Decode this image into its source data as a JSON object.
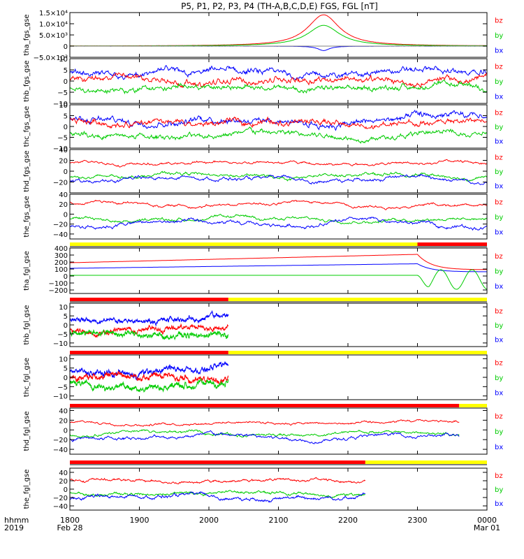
{
  "title": "P5, P1, P2, P3, P4 (TH-A,B,C,D,E) FGS, FGL [nT]",
  "footer": {
    "left_top": "hhmm",
    "left_bottom": "2019"
  },
  "colors": {
    "bz": "#ff0000",
    "by": "#00cc00",
    "bx": "#0000ff",
    "flag_yellow": "#ffff00",
    "flag_red": "#ff0000",
    "frame": "#000000"
  },
  "x_axis": {
    "ticks": [
      {
        "t": 0,
        "label": "1800",
        "sub": "Feb 28"
      },
      {
        "t": 1,
        "label": "1900",
        "sub": ""
      },
      {
        "t": 2,
        "label": "2000",
        "sub": ""
      },
      {
        "t": 3,
        "label": "2100",
        "sub": ""
      },
      {
        "t": 4,
        "label": "2200",
        "sub": ""
      },
      {
        "t": 5,
        "label": "2300",
        "sub": ""
      },
      {
        "t": 6,
        "label": "0000",
        "sub": "Mar 01"
      }
    ]
  },
  "chart_data": [
    {
      "type": "line",
      "ylabel": "tha_fgs_gse",
      "ylim": [
        -5000,
        15000
      ],
      "yticks": [
        {
          "v": 15000,
          "label": "1.5×10⁴"
        },
        {
          "v": 10000,
          "label": "1.0×10⁴"
        },
        {
          "v": 5000,
          "label": "5.0×10³"
        },
        {
          "v": 0,
          "label": "0"
        },
        {
          "v": -5000,
          "label": "−5.0×10³"
        }
      ],
      "legend": [
        "bz",
        "by",
        "bx"
      ],
      "kind": "peak",
      "x_end": 6,
      "series": [
        {
          "name": "bz",
          "base": 0,
          "peak": 14000,
          "center": 3.65,
          "width": 0.28,
          "noise": 60
        },
        {
          "name": "by",
          "base": 0,
          "peak": 9300,
          "center": 3.65,
          "width": 0.28,
          "noise": 60
        },
        {
          "name": "bx",
          "base": 0,
          "peak": -2000,
          "center": 3.65,
          "width": 0.1,
          "noise": 30
        }
      ]
    },
    {
      "type": "line",
      "ylabel": "thb_fgs_gse",
      "ylim": [
        -10,
        10
      ],
      "yticks": [
        {
          "v": 10,
          "label": "10"
        },
        {
          "v": 5,
          "label": "5"
        },
        {
          "v": 0,
          "label": "0"
        },
        {
          "v": -5,
          "label": "−5"
        },
        {
          "v": -10,
          "label": "−10"
        }
      ],
      "legend": [
        "bz",
        "by",
        "bx"
      ],
      "kind": "noise",
      "x_end": 6,
      "series": [
        {
          "name": "bx",
          "base": 3.5,
          "amp": 1.8,
          "noise": 1.3
        },
        {
          "name": "bz",
          "base": 0.5,
          "amp": 2.0,
          "noise": 1.3
        },
        {
          "name": "by",
          "base": -3,
          "amp": 1.5,
          "noise": 1.2
        }
      ]
    },
    {
      "type": "line",
      "ylabel": "thc_fgs_gse",
      "ylim": [
        -10,
        10
      ],
      "yticks": [
        {
          "v": 10,
          "label": "10"
        },
        {
          "v": 5,
          "label": "5"
        },
        {
          "v": 0,
          "label": "0"
        },
        {
          "v": -5,
          "label": "−5"
        },
        {
          "v": -10,
          "label": "−10"
        }
      ],
      "legend": [
        "bz",
        "by",
        "bx"
      ],
      "kind": "noise",
      "x_end": 6,
      "series": [
        {
          "name": "bx",
          "base": 3,
          "amp": 2.0,
          "noise": 1.4
        },
        {
          "name": "bz",
          "base": 1.5,
          "amp": 2.0,
          "noise": 1.4
        },
        {
          "name": "by",
          "base": -4,
          "amp": 1.5,
          "noise": 1.2
        }
      ]
    },
    {
      "type": "line",
      "ylabel": "thd_fgs_gse",
      "ylim": [
        -40,
        40
      ],
      "yticks": [
        {
          "v": 40,
          "label": "40"
        },
        {
          "v": 20,
          "label": "20"
        },
        {
          "v": 0,
          "label": "0"
        },
        {
          "v": -20,
          "label": "−20"
        }
      ],
      "legend": [
        "bz",
        "by",
        "bx"
      ],
      "kind": "noise",
      "x_end": 6,
      "series": [
        {
          "name": "bz",
          "base": 15,
          "amp": 4,
          "noise": 1.5
        },
        {
          "name": "by",
          "base": -8,
          "amp": 5,
          "noise": 2
        },
        {
          "name": "bx",
          "base": -15,
          "amp": 6,
          "noise": 2
        }
      ]
    },
    {
      "type": "line",
      "ylabel": "the_fgs_gse",
      "ylim": [
        -50,
        40
      ],
      "yticks": [
        {
          "v": 40,
          "label": "40"
        },
        {
          "v": 20,
          "label": "20"
        },
        {
          "v": 0,
          "label": "0"
        },
        {
          "v": -20,
          "label": "−20"
        },
        {
          "v": -40,
          "label": "−40"
        }
      ],
      "legend": [
        "bz",
        "by",
        "bx"
      ],
      "kind": "noise",
      "x_end": 6,
      "series": [
        {
          "name": "bz",
          "base": 20,
          "amp": 5,
          "noise": 1.5
        },
        {
          "name": "by",
          "base": -10,
          "amp": 5,
          "noise": 2
        },
        {
          "name": "bx",
          "base": -20,
          "amp": 7,
          "noise": 2
        }
      ]
    },
    {
      "type": "line",
      "ylabel": "tha_fgl_gse",
      "ylim": [
        -250,
        400
      ],
      "yticks": [
        {
          "v": 400,
          "label": "400"
        },
        {
          "v": 300,
          "label": "300"
        },
        {
          "v": 200,
          "label": "200"
        },
        {
          "v": 100,
          "label": "100"
        },
        {
          "v": 0,
          "label": "0"
        },
        {
          "v": -100,
          "label": "−100"
        },
        {
          "v": -200,
          "label": "−200"
        }
      ],
      "legend": [
        "bz",
        "by",
        "bx"
      ],
      "kind": "ramp",
      "x_end": 6,
      "flags": [
        {
          "from": 0,
          "to": 5,
          "color": "yellow"
        },
        {
          "from": 5,
          "to": 6,
          "color": "red"
        }
      ],
      "series": [
        {
          "name": "bz",
          "v0": 190,
          "v1": 310,
          "after": 90
        },
        {
          "name": "bx",
          "v0": 110,
          "v1": 175,
          "after": 60
        },
        {
          "name": "by",
          "v0": 10,
          "v1": 10,
          "after": 0,
          "osc": 140
        }
      ]
    },
    {
      "type": "line",
      "ylabel": "thb_fgl_gse",
      "ylim": [
        -12,
        12
      ],
      "yticks": [
        {
          "v": 10,
          "label": "10"
        },
        {
          "v": 5,
          "label": "5"
        },
        {
          "v": 0,
          "label": "0"
        },
        {
          "v": -5,
          "label": "−5"
        },
        {
          "v": -10,
          "label": "−10"
        }
      ],
      "legend": [
        "bz",
        "by",
        "bx"
      ],
      "kind": "noise",
      "x_end": 2.28,
      "flags": [
        {
          "from": 0,
          "to": 2.28,
          "color": "red"
        },
        {
          "from": 2.28,
          "to": 6,
          "color": "yellow"
        }
      ],
      "series": [
        {
          "name": "bx",
          "base": 3,
          "amp": 2,
          "noise": 1.2
        },
        {
          "name": "bz",
          "base": -2.5,
          "amp": 1.8,
          "noise": 1.2
        },
        {
          "name": "by",
          "base": -5,
          "amp": 1.5,
          "noise": 1.6
        }
      ]
    },
    {
      "type": "line",
      "ylabel": "thc_fgl_gse",
      "ylim": [
        -12,
        12
      ],
      "yticks": [
        {
          "v": 10,
          "label": "10"
        },
        {
          "v": 5,
          "label": "5"
        },
        {
          "v": 0,
          "label": "0"
        },
        {
          "v": -5,
          "label": "−5"
        },
        {
          "v": -10,
          "label": "−10"
        }
      ],
      "legend": [
        "bz",
        "by",
        "bx"
      ],
      "kind": "noise",
      "x_end": 2.28,
      "flags": [
        {
          "from": 0,
          "to": 2.28,
          "color": "red"
        },
        {
          "from": 2.28,
          "to": 6,
          "color": "yellow"
        }
      ],
      "series": [
        {
          "name": "bx",
          "base": 3.5,
          "amp": 2,
          "noise": 1.4
        },
        {
          "name": "bz",
          "base": 0,
          "amp": 2,
          "noise": 1.6
        },
        {
          "name": "by",
          "base": -4,
          "amp": 1.8,
          "noise": 1.6
        }
      ]
    },
    {
      "type": "line",
      "ylabel": "thd_fgl_gse",
      "ylim": [
        -50,
        45
      ],
      "yticks": [
        {
          "v": 40,
          "label": "40"
        },
        {
          "v": 20,
          "label": "20"
        },
        {
          "v": 0,
          "label": "0"
        },
        {
          "v": -20,
          "label": "−20"
        },
        {
          "v": -40,
          "label": "−40"
        }
      ],
      "legend": [
        "bz",
        "by",
        "bx"
      ],
      "kind": "noise",
      "x_end": 5.6,
      "flags": [
        {
          "from": 0,
          "to": 5.6,
          "color": "red"
        },
        {
          "from": 5.6,
          "to": 6,
          "color": "yellow"
        }
      ],
      "series": [
        {
          "name": "bz",
          "base": 15,
          "amp": 4,
          "noise": 1.5
        },
        {
          "name": "by",
          "base": -8,
          "amp": 5,
          "noise": 2
        },
        {
          "name": "bx",
          "base": -15,
          "amp": 6,
          "noise": 2
        }
      ]
    },
    {
      "type": "line",
      "ylabel": "the_fgl_gse",
      "ylim": [
        -50,
        50
      ],
      "yticks": [
        {
          "v": 40,
          "label": "40"
        },
        {
          "v": 20,
          "label": "20"
        },
        {
          "v": 0,
          "label": "0"
        },
        {
          "v": -20,
          "label": "−20"
        },
        {
          "v": -40,
          "label": "−40"
        }
      ],
      "legend": [
        "bz",
        "by",
        "bx"
      ],
      "kind": "noise",
      "x_end": 4.25,
      "flags": [
        {
          "from": 0,
          "to": 4.25,
          "color": "red"
        },
        {
          "from": 4.25,
          "to": 6,
          "color": "yellow"
        }
      ],
      "series": [
        {
          "name": "bz",
          "base": 20,
          "amp": 5,
          "noise": 1.5
        },
        {
          "name": "by",
          "base": -10,
          "amp": 5,
          "noise": 2
        },
        {
          "name": "bx",
          "base": -20,
          "amp": 7,
          "noise": 2
        }
      ]
    }
  ]
}
